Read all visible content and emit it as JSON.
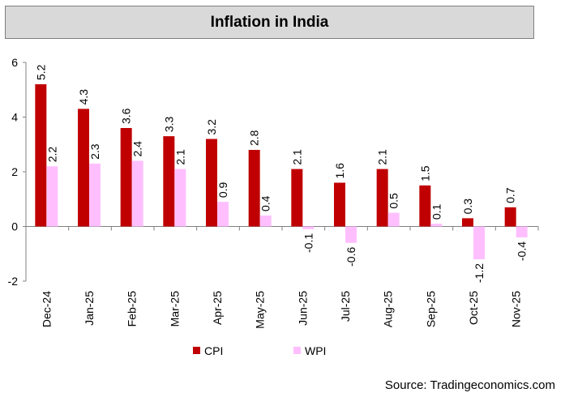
{
  "title": "Inflation in India",
  "source": "Source: Tradingeconomics.com",
  "colors": {
    "cpi": "#c00000",
    "wpi": "#ffbfff",
    "axis": "#808080"
  },
  "chart_data": {
    "type": "bar",
    "title": "Inflation in India",
    "xlabel": "",
    "ylabel": "",
    "ylim": [
      -2,
      6
    ],
    "yticks": [
      "-2",
      "0",
      "2",
      "4",
      "6"
    ],
    "grid": false,
    "legend": "bottom-center",
    "categories": [
      "Dec-24",
      "Jan-25",
      "Feb-25",
      "Mar-25",
      "Apr-25",
      "May-25",
      "Jun-25",
      "Jul-25",
      "Aug-25",
      "Sep-25",
      "Oct-25",
      "Nov-25"
    ],
    "series": [
      {
        "name": "CPI",
        "values": [
          5.2,
          4.3,
          3.6,
          3.3,
          3.2,
          2.8,
          2.1,
          1.6,
          2.1,
          1.5,
          0.3,
          0.7
        ],
        "labels": [
          "5.2",
          "4.3",
          "3.6",
          "3.3",
          "3.2",
          "2.8",
          "2.1",
          "1.6",
          "2.1",
          "1.5",
          "0.3",
          "0.7"
        ]
      },
      {
        "name": "WPI",
        "values": [
          2.2,
          2.3,
          2.4,
          2.1,
          0.9,
          0.4,
          -0.1,
          -0.6,
          0.5,
          0.1,
          -1.2,
          -0.4
        ],
        "labels": [
          "2.2",
          "2.3",
          "2.4",
          "2.1",
          "0.9",
          "0.4",
          "-0.1",
          "-0.6",
          "0.5",
          "0.1",
          "-1.2",
          "-0.4"
        ]
      }
    ]
  }
}
